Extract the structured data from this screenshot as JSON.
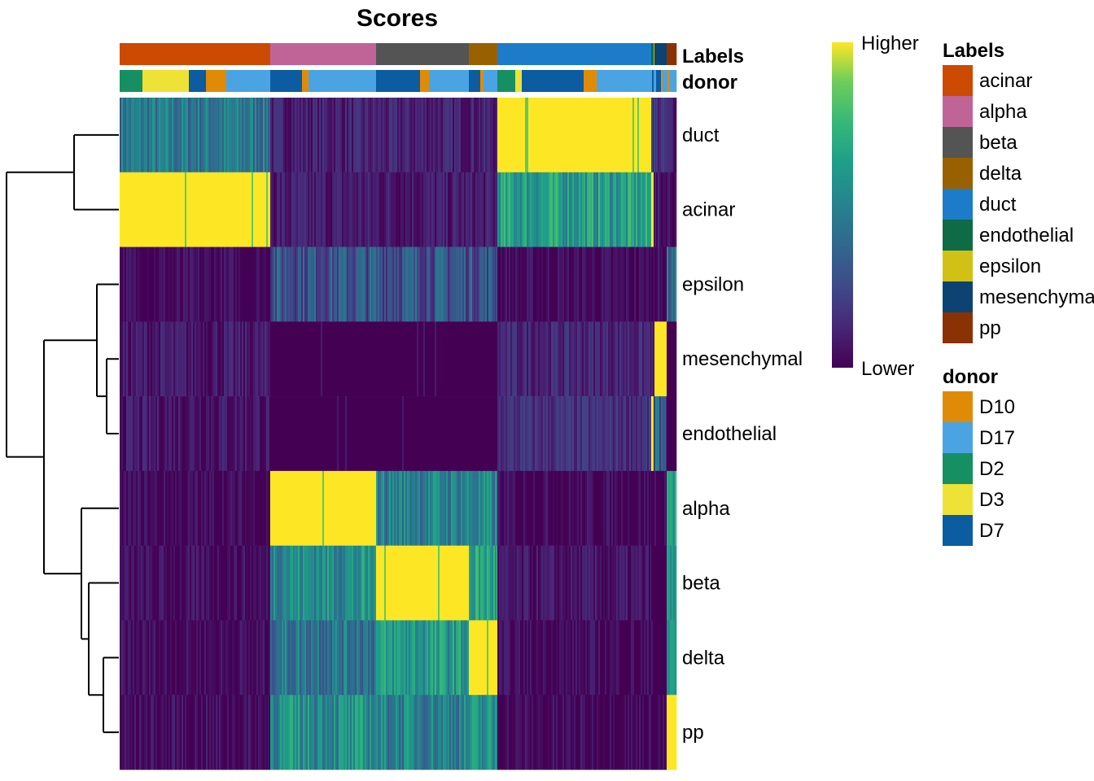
{
  "chart_data": {
    "type": "heatmap",
    "title": "Scores",
    "rows": [
      "duct",
      "acinar",
      "epsilon",
      "mesenchymal",
      "endothelial",
      "alpha",
      "beta",
      "delta",
      "pp"
    ],
    "row_dendrogram": "((duct,acinar),((epsilon,(mesenchymal,endothelial)),(alpha,(beta,(delta,pp)))))",
    "column_annotations": {
      "Labels": {
        "title": "Labels",
        "segments": [
          {
            "label": "acinar",
            "cells": 185
          },
          {
            "label": "alpha",
            "cells": 130
          },
          {
            "label": "beta",
            "cells": 114
          },
          {
            "label": "delta",
            "cells": 35
          },
          {
            "label": "duct",
            "cells": 189
          },
          {
            "label": "endothelial",
            "cells": 3
          },
          {
            "label": "epsilon",
            "cells": 1
          },
          {
            "label": "mesenchymal",
            "cells": 15
          },
          {
            "label": "pp",
            "cells": 12
          }
        ]
      },
      "donor": {
        "title": "donor",
        "segments": [
          {
            "label": "D2",
            "cells": 28
          },
          {
            "label": "D3",
            "cells": 57
          },
          {
            "label": "D7",
            "cells": 21
          },
          {
            "label": "D10",
            "cells": 25
          },
          {
            "label": "D17",
            "cells": 54
          },
          {
            "label": "D7",
            "cells": 39
          },
          {
            "label": "D10",
            "cells": 8
          },
          {
            "label": "D17",
            "cells": 83
          },
          {
            "label": "D7",
            "cells": 54
          },
          {
            "label": "D10",
            "cells": 11
          },
          {
            "label": "D17",
            "cells": 49
          },
          {
            "label": "D7",
            "cells": 14
          },
          {
            "label": "D10",
            "cells": 4
          },
          {
            "label": "D17",
            "cells": 17
          },
          {
            "label": "D2",
            "cells": 22
          },
          {
            "label": "D3",
            "cells": 8
          },
          {
            "label": "D7",
            "cells": 76
          },
          {
            "label": "D10",
            "cells": 16
          },
          {
            "label": "D17",
            "cells": 68
          },
          {
            "label": "D7",
            "cells": 2
          },
          {
            "label": "D17",
            "cells": 3
          },
          {
            "label": "D7",
            "cells": 6
          },
          {
            "label": "D10",
            "cells": 2
          },
          {
            "label": "D17",
            "cells": 6
          },
          {
            "label": "D10",
            "cells": 2
          },
          {
            "label": "D17",
            "cells": 9
          }
        ]
      }
    },
    "block_scores_note_columns": [
      "acinar",
      "alpha",
      "beta",
      "delta",
      "duct",
      "endothelial",
      "epsilon",
      "mesenchymal",
      "pp"
    ],
    "block_scores": [
      [
        0.45,
        0.1,
        0.1,
        0.1,
        1.0,
        0.2,
        0.2,
        0.15,
        0.1
      ],
      [
        1.0,
        0.08,
        0.08,
        0.08,
        0.62,
        1.0,
        0.05,
        0.05,
        0.05
      ],
      [
        0.02,
        0.3,
        0.3,
        0.3,
        0.02,
        0.02,
        0.0,
        0.02,
        0.4
      ],
      [
        0.07,
        0.0,
        0.0,
        0.0,
        0.12,
        0.05,
        0.0,
        1.0,
        0.0
      ],
      [
        0.07,
        0.0,
        0.0,
        0.0,
        0.15,
        1.0,
        0.0,
        0.35,
        0.0
      ],
      [
        0.02,
        1.0,
        0.5,
        0.5,
        0.02,
        0.0,
        0.0,
        0.0,
        0.65
      ],
      [
        0.03,
        0.55,
        1.0,
        0.65,
        0.05,
        0.0,
        0.0,
        0.0,
        0.5
      ],
      [
        0.03,
        0.45,
        0.6,
        1.0,
        0.02,
        0.0,
        0.0,
        0.0,
        0.6
      ],
      [
        0.03,
        0.55,
        0.5,
        0.55,
        0.02,
        0.0,
        0.0,
        0.02,
        1.0
      ]
    ],
    "colorbar": {
      "high_label": "Higher",
      "low_label": "Lower",
      "palette": "viridis"
    },
    "legends": {
      "Labels": {
        "title": "Labels",
        "items": [
          {
            "label": "acinar",
            "color": "#CC4A02"
          },
          {
            "label": "alpha",
            "color": "#C06498"
          },
          {
            "label": "beta",
            "color": "#545454"
          },
          {
            "label": "delta",
            "color": "#996000"
          },
          {
            "label": "duct",
            "color": "#1C7CC9"
          },
          {
            "label": "endothelial",
            "color": "#0F6B45"
          },
          {
            "label": "epsilon",
            "color": "#D1C114"
          },
          {
            "label": "mesenchymal",
            "color": "#0D4372"
          },
          {
            "label": "pp",
            "color": "#8B3205"
          }
        ]
      },
      "donor": {
        "title": "donor",
        "items": [
          {
            "label": "D10",
            "color": "#E08B08"
          },
          {
            "label": "D17",
            "color": "#4AA4E3"
          },
          {
            "label": "D2",
            "color": "#168F63"
          },
          {
            "label": "D3",
            "color": "#EEE236"
          },
          {
            "label": "D7",
            "color": "#0B5CA1"
          }
        ]
      }
    }
  }
}
